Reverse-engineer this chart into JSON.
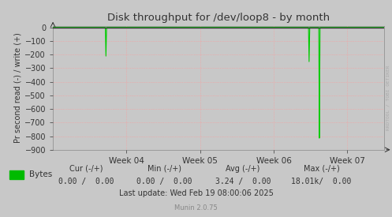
{
  "title": "Disk throughput for /dev/loop8 - by month",
  "ylabel": "Pr second read (-) / write (+)",
  "background_color": "#c8c8c8",
  "plot_bg_color": "#c8c8c8",
  "grid_color": "#ff9999",
  "title_color": "#333333",
  "label_color": "#333333",
  "tick_color": "#333333",
  "watermark_color": "#aaaaaa",
  "ylim": [
    -900,
    10
  ],
  "yticks": [
    0,
    -100,
    -200,
    -300,
    -400,
    -500,
    -600,
    -700,
    -800,
    -900
  ],
  "xlim": [
    0.0,
    4.5
  ],
  "xtick_positions": [
    1.0,
    2.0,
    3.0,
    4.0
  ],
  "xtick_labels": [
    "Week 04",
    "Week 05",
    "Week 06",
    "Week 07"
  ],
  "line_color": "#00cc00",
  "spike1_x": 0.72,
  "spike1_y": -215,
  "spike2_x": 3.48,
  "spike2_y": -255,
  "spike3_x": 3.62,
  "spike3_y": -855,
  "legend_label": "Bytes",
  "legend_color": "#00bb00",
  "footer_text": "Last update: Wed Feb 19 08:00:06 2025",
  "munin_text": "Munin 2.0.75",
  "munin_color": "#888888",
  "cur_label": "Cur (-/+)",
  "min_label": "Min (-/+)",
  "avg_label": "Avg (-/+)",
  "max_label": "Max (-/+)",
  "cur_val": "0.00 /  0.00",
  "min_val": "0.00 /  0.00",
  "avg_val": "3.24 /  0.00",
  "max_val": "18.01k/  0.00",
  "watermark": "RRDTOOL / TOBI OETIKER",
  "border_color": "#888888",
  "top_line_color": "#333333"
}
